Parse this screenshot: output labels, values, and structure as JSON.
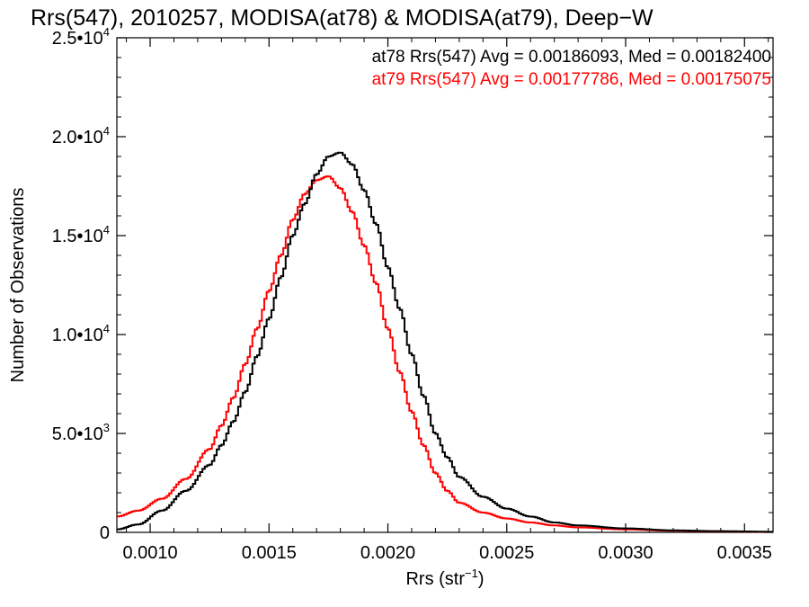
{
  "chart_data": {
    "type": "line",
    "title": "Rrs(547), 2010257, MODISA(at78) & MODISA(at79), Deep−W",
    "xlabel": "Rrs (str",
    "xlabel_sup": "−1",
    "xlabel_end": ")",
    "ylabel": "Number of Observations",
    "xlim": [
      0.00086,
      0.00362
    ],
    "ylim": [
      0,
      25000
    ],
    "xticks": [
      {
        "value": 0.001,
        "label": "0.0010"
      },
      {
        "value": 0.0015,
        "label": "0.0015"
      },
      {
        "value": 0.002,
        "label": "0.0020"
      },
      {
        "value": 0.0025,
        "label": "0.0025"
      },
      {
        "value": 0.003,
        "label": "0.0030"
      },
      {
        "value": 0.0035,
        "label": "0.0035"
      }
    ],
    "yticks": [
      {
        "value": 0,
        "base": "0",
        "exp": ""
      },
      {
        "value": 5000,
        "base": "5.0•10",
        "exp": "3"
      },
      {
        "value": 10000,
        "base": "1.0•10",
        "exp": "4"
      },
      {
        "value": 15000,
        "base": "1.5•10",
        "exp": "4"
      },
      {
        "value": 20000,
        "base": "2.0•10",
        "exp": "4"
      },
      {
        "value": 25000,
        "base": "2.5•10",
        "exp": "4"
      }
    ],
    "legend_position": "top-right",
    "series": [
      {
        "name": "at78 Rrs(547) Avg = 0.00186093, Med = 0.00182400",
        "color": "#000000",
        "style": "step",
        "x": [
          0.00086,
          0.00095,
          0.00105,
          0.00115,
          0.00125,
          0.0013,
          0.00135,
          0.0014,
          0.00145,
          0.0015,
          0.00155,
          0.0016,
          0.00165,
          0.0017,
          0.00175,
          0.0018,
          0.00185,
          0.0019,
          0.00195,
          0.002,
          0.00205,
          0.0021,
          0.00215,
          0.0022,
          0.00225,
          0.0023,
          0.0024,
          0.0025,
          0.0026,
          0.0027,
          0.0028,
          0.003,
          0.0032,
          0.0034,
          0.00362
        ],
        "y": [
          150,
          400,
          1100,
          2100,
          3400,
          4400,
          5600,
          7100,
          8900,
          10800,
          12900,
          15000,
          16600,
          18100,
          19000,
          19200,
          18600,
          17300,
          15600,
          13400,
          11300,
          9000,
          6900,
          5000,
          3800,
          2800,
          1800,
          1200,
          800,
          500,
          350,
          200,
          100,
          60,
          30
        ]
      },
      {
        "name": "at79 Rrs(547) Avg = 0.00177786, Med = 0.00175075",
        "color": "#ff0000",
        "style": "step",
        "x": [
          0.00086,
          0.00095,
          0.00105,
          0.00115,
          0.00125,
          0.0013,
          0.00135,
          0.0014,
          0.00145,
          0.0015,
          0.00155,
          0.0016,
          0.00165,
          0.0017,
          0.00175,
          0.0018,
          0.00185,
          0.0019,
          0.00195,
          0.002,
          0.00205,
          0.0021,
          0.00215,
          0.0022,
          0.00225,
          0.0023,
          0.0024,
          0.0025,
          0.0026,
          0.0027,
          0.0028,
          0.003,
          0.0032,
          0.0034,
          0.00362
        ],
        "y": [
          800,
          1100,
          1700,
          2700,
          4200,
          5400,
          6800,
          8500,
          10300,
          12200,
          14000,
          15800,
          17100,
          17800,
          18000,
          17400,
          16200,
          14500,
          12600,
          10300,
          8100,
          6100,
          4400,
          3000,
          2100,
          1500,
          1000,
          700,
          500,
          350,
          250,
          150,
          80,
          50,
          20
        ]
      }
    ]
  }
}
